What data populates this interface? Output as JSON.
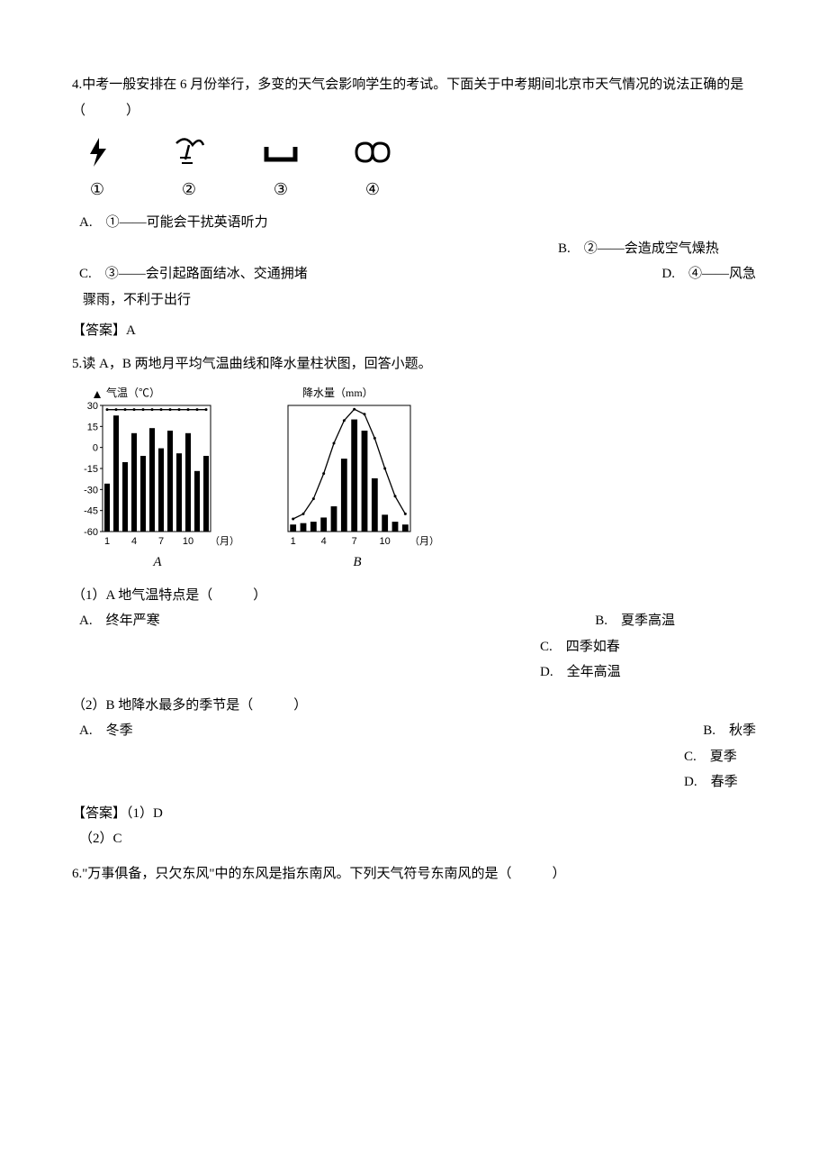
{
  "q4": {
    "stem": "4.中考一般安排在 6 月份举行，多变的天气会影响学生的考试。下面关于中考期间北京市天气情况的说法正确的是（　　　）",
    "icons": {
      "labels": [
        "①",
        "②",
        "③",
        "④"
      ]
    },
    "options": {
      "A_label": "A.",
      "A_text": "①——可能会干扰英语听力",
      "B_label": "B.",
      "B_text": "②——会造成空气燥热",
      "C_label": "C.",
      "C_text": "③——会引起路面结冰、交通拥堵",
      "D_label": "D.",
      "D_text": "④——风急",
      "D_cont": "骤雨，不利于出行"
    },
    "answer_label": "【答案】A"
  },
  "q5": {
    "stem": "5.读 A，B 两地月平均气温曲线和降水量柱状图，回答小题。",
    "chartA": {
      "title": "气温（℃）",
      "y_min": -60,
      "y_max": 30,
      "y_step": 15,
      "y_ticks": [
        30,
        15,
        0,
        -15,
        -30,
        -45,
        -60
      ],
      "x_ticks": [
        1,
        4,
        7,
        10
      ],
      "x_unit": "（月）",
      "temp": [
        27,
        27,
        27,
        27,
        27,
        27,
        27,
        27,
        27,
        27,
        27,
        27
      ],
      "precip_ratio": [
        0.38,
        0.92,
        0.55,
        0.78,
        0.6,
        0.82,
        0.66,
        0.8,
        0.62,
        0.78,
        0.48,
        0.6
      ],
      "stroke": "#000000",
      "bar_fill": "#000000",
      "bg": "#ffffff"
    },
    "chartB": {
      "title": "降水量（mm）",
      "y_min": 0,
      "y_max": 90,
      "precip": [
        5,
        6,
        7,
        10,
        18,
        52,
        80,
        72,
        38,
        12,
        7,
        5
      ],
      "temp_norm": [
        0.1,
        0.14,
        0.26,
        0.46,
        0.7,
        0.88,
        0.97,
        0.93,
        0.74,
        0.5,
        0.28,
        0.14
      ],
      "x_ticks": [
        1,
        4,
        7,
        10
      ],
      "x_unit": "（月）",
      "stroke": "#000000",
      "bar_fill": "#000000",
      "bg": "#ffffff"
    },
    "labelA": "A",
    "labelB": "B",
    "sub1": {
      "text": "（1）A 地气温特点是（　　　）",
      "A": "A.　终年严寒",
      "B": "B.　夏季高温",
      "C": "C.　四季如春",
      "D": "D.　全年高温"
    },
    "sub2": {
      "text": "（2）B 地降水最多的季节是（　　　）",
      "A": "A.　冬季",
      "B": "B.　秋季",
      "C": "C.　夏季",
      "D": "D.　春季"
    },
    "answer1": "【答案】（1）D",
    "answer2": "（2）C"
  },
  "q6": {
    "stem": "6.\"万事俱备，只欠东风\"中的东风是指东南风。下列天气符号东南风的是（　　　）"
  }
}
